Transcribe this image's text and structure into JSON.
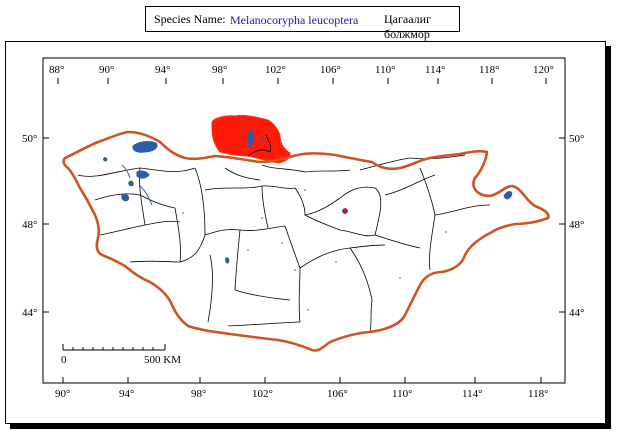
{
  "title": {
    "label": "Species Name:",
    "scientific_name": "Melanocorypha leucoptera",
    "local_name": "Цагаалиг болжмор"
  },
  "map": {
    "top_longitudes": [
      "88°",
      "90°",
      "94°",
      "98°",
      "102°",
      "106°",
      "110°",
      "114°",
      "118°",
      "120°"
    ],
    "bottom_longitudes": [
      "90°",
      "94°",
      "98°",
      "102°",
      "106°",
      "110°",
      "114°",
      "118°"
    ],
    "left_latitudes": [
      "50°",
      "48°",
      "44°"
    ],
    "right_latitudes": [
      "50°",
      "48°",
      "44°"
    ],
    "scale_bar": {
      "start_label": "0",
      "end_label": "500 KM"
    },
    "colors": {
      "border": "#cc5522",
      "range": "#ff1a0a",
      "water": "#2a5ea8",
      "province_lines": "#000000",
      "city_marker": "#cc1133"
    }
  }
}
